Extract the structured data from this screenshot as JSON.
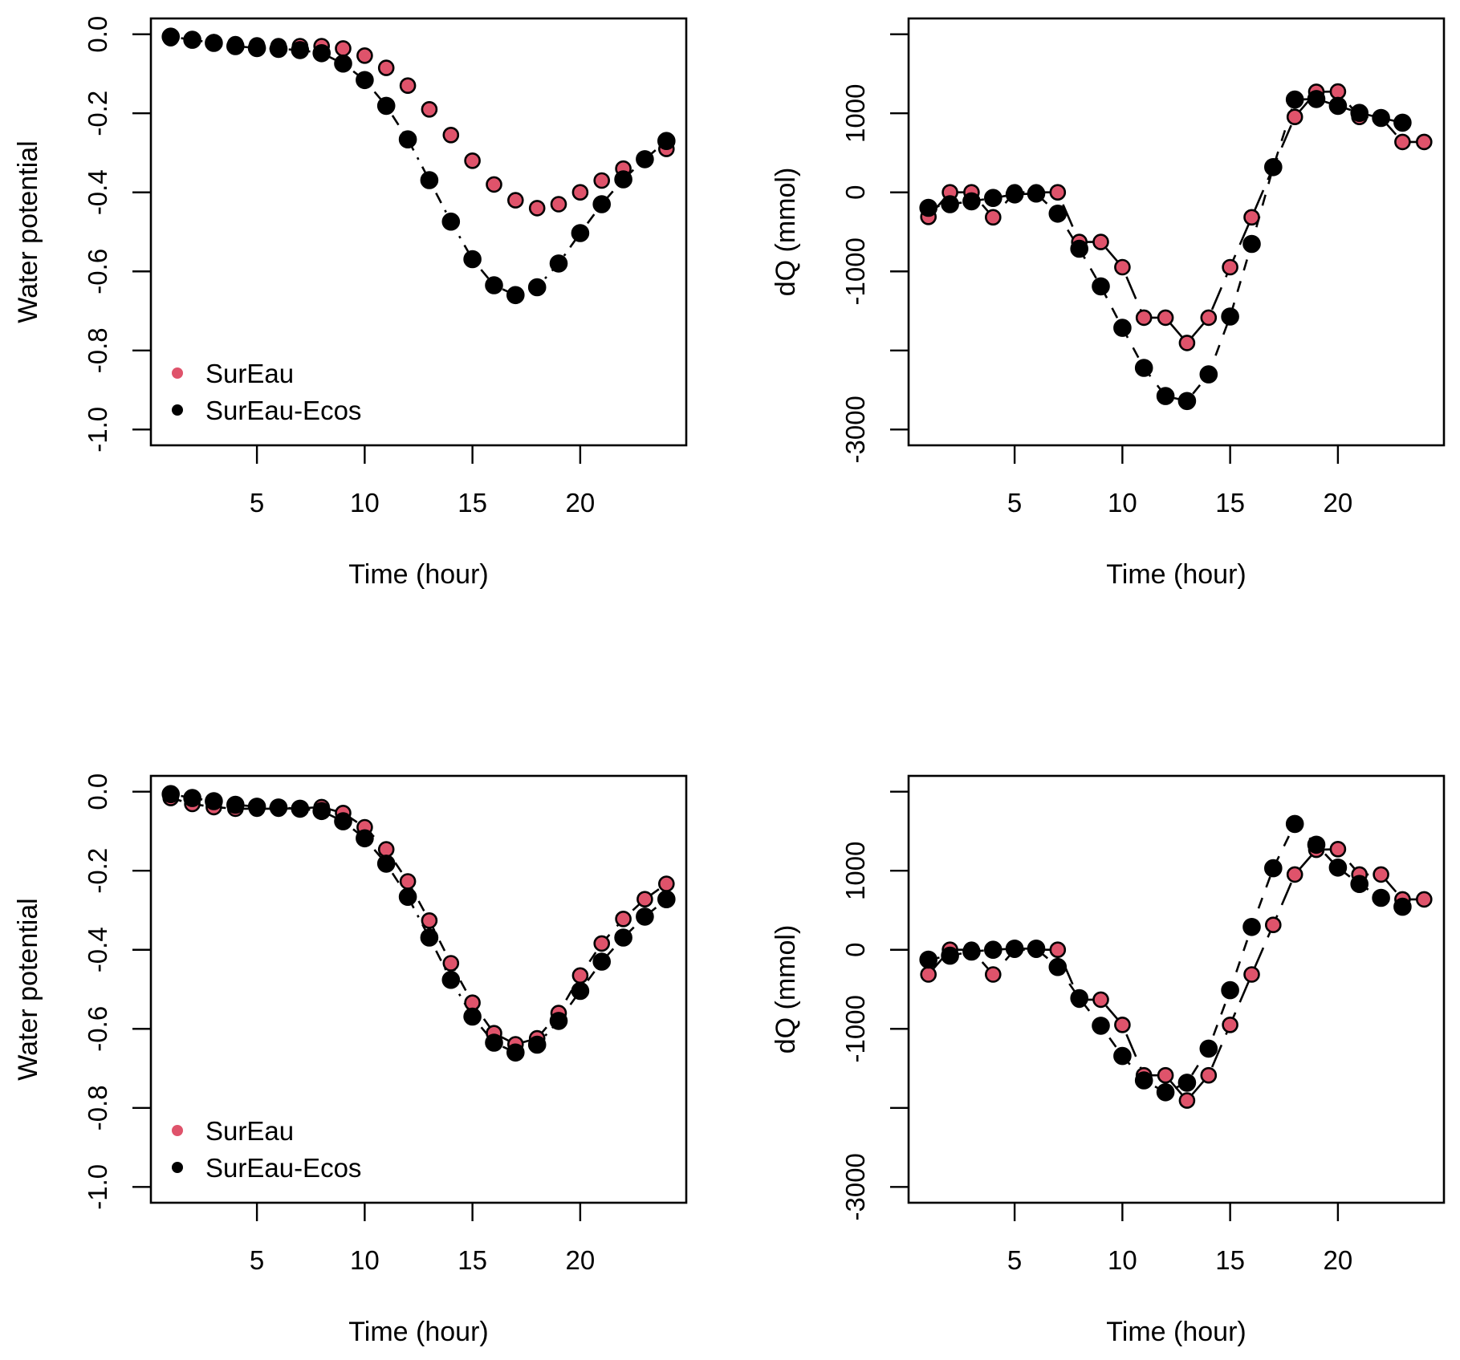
{
  "colors": {
    "sureau": "#DF536B",
    "sureau_ecos": "#000000"
  },
  "chart_data": [
    {
      "id": "top-left",
      "type": "scatter",
      "title": "",
      "xlabel": "Time (hour)",
      "ylabel": "Water potential",
      "xlim": [
        1,
        24
      ],
      "ylim": [
        -1.0,
        0.0
      ],
      "xticks": [
        5,
        10,
        15,
        20
      ],
      "xtick_labels": [
        "5",
        "10",
        "15",
        "20"
      ],
      "yticks": [
        0.0,
        -0.2,
        -0.4,
        -0.6,
        -0.8,
        -1.0
      ],
      "ytick_labels": [
        "0.0",
        "-0.2",
        "-0.4",
        "-0.6",
        "-0.8",
        "-1.0"
      ],
      "legend": {
        "placement": "bottom-left",
        "entries": [
          "SurEau",
          "SurEau-Ecos"
        ]
      },
      "grid": false,
      "series": [
        {
          "name": "SurEau",
          "color": "#DF536B",
          "line": "none",
          "x": [
            1,
            2,
            3,
            4,
            5,
            6,
            7,
            8,
            9,
            10,
            11,
            12,
            13,
            14,
            15,
            16,
            17,
            18,
            19,
            20,
            21,
            22,
            23,
            24
          ],
          "values": [
            -0.01,
            -0.015,
            -0.02,
            -0.025,
            -0.028,
            -0.03,
            -0.03,
            -0.03,
            -0.036,
            -0.054,
            -0.085,
            -0.13,
            -0.19,
            -0.255,
            -0.32,
            -0.38,
            -0.42,
            -0.44,
            -0.43,
            -0.4,
            -0.37,
            -0.34,
            -0.315,
            -0.29
          ]
        },
        {
          "name": "SurEau-Ecos",
          "color": "#000000",
          "line": "dotdash",
          "x": [
            1,
            2,
            3,
            4,
            5,
            6,
            7,
            8,
            9,
            10,
            11,
            12,
            13,
            14,
            15,
            16,
            17,
            18,
            19,
            20,
            21,
            22,
            23,
            24
          ],
          "values": [
            -0.006,
            -0.014,
            -0.022,
            -0.03,
            -0.035,
            -0.037,
            -0.04,
            -0.048,
            -0.074,
            -0.116,
            -0.181,
            -0.266,
            -0.369,
            -0.474,
            -0.569,
            -0.635,
            -0.66,
            -0.64,
            -0.58,
            -0.503,
            -0.43,
            -0.367,
            -0.316,
            -0.27
          ]
        }
      ]
    },
    {
      "id": "top-right",
      "type": "scatter",
      "title": "",
      "xlabel": "Time (hour)",
      "ylabel": "dQ (mmol)",
      "xlim": [
        1,
        24
      ],
      "ylim": [
        -3000,
        2000
      ],
      "xticks": [
        5,
        10,
        15,
        20
      ],
      "xtick_labels": [
        "5",
        "10",
        "15",
        "20"
      ],
      "yticks": [
        2000,
        1000,
        0,
        -1000,
        -2000,
        -3000
      ],
      "ytick_labels": [
        "",
        "1000",
        "0",
        "-1000",
        "",
        "-3000"
      ],
      "grid": false,
      "series": [
        {
          "name": "SurEau",
          "color": "#DF536B",
          "line": "longdash",
          "x": [
            1,
            2,
            3,
            4,
            5,
            6,
            7,
            8,
            9,
            10,
            11,
            12,
            13,
            14,
            15,
            16,
            17,
            18,
            19,
            20,
            21,
            22,
            23,
            24
          ],
          "values": [
            -310,
            0,
            0,
            -315,
            0,
            0,
            0,
            -628,
            -628,
            -947,
            -1585,
            -1585,
            -1905,
            -1585,
            -947,
            -315,
            319,
            955,
            1272,
            1275,
            955,
            945,
            638,
            638
          ]
        },
        {
          "name": "SurEau-Ecos",
          "color": "#000000",
          "line": "dashed",
          "x": [
            1,
            2,
            3,
            4,
            5,
            6,
            7,
            8,
            9,
            10,
            11,
            12,
            13,
            14,
            15,
            16,
            17,
            18,
            19,
            20,
            21,
            22,
            23
          ],
          "values": [
            -195,
            -150,
            -113,
            -71,
            -26,
            -15,
            -270,
            -713,
            -1189,
            -1714,
            -2220,
            -2577,
            -2640,
            -2303,
            -1571,
            -652,
            319,
            1174,
            1181,
            1095,
            1005,
            941,
            881
          ]
        }
      ]
    },
    {
      "id": "bottom-left",
      "type": "scatter",
      "title": "",
      "xlabel": "Time (hour)",
      "ylabel": "Water potential",
      "xlim": [
        1,
        24
      ],
      "ylim": [
        -1.0,
        0.0
      ],
      "xticks": [
        5,
        10,
        15,
        20
      ],
      "xtick_labels": [
        "5",
        "10",
        "15",
        "20"
      ],
      "yticks": [
        0.0,
        -0.2,
        -0.4,
        -0.6,
        -0.8,
        -1.0
      ],
      "ytick_labels": [
        "0.0",
        "-0.2",
        "-0.4",
        "-0.6",
        "-0.8",
        "-1.0"
      ],
      "legend": {
        "placement": "bottom-left",
        "entries": [
          "SurEau",
          "SurEau-Ecos"
        ]
      },
      "grid": false,
      "series": [
        {
          "name": "SurEau",
          "color": "#DF536B",
          "line": "dashed",
          "x": [
            1,
            2,
            3,
            4,
            5,
            6,
            7,
            8,
            9,
            10,
            11,
            12,
            13,
            14,
            15,
            16,
            17,
            18,
            19,
            20,
            21,
            22,
            23,
            24
          ],
          "values": [
            -0.016,
            -0.031,
            -0.039,
            -0.043,
            -0.043,
            -0.043,
            -0.042,
            -0.039,
            -0.054,
            -0.09,
            -0.146,
            -0.227,
            -0.326,
            -0.434,
            -0.534,
            -0.611,
            -0.639,
            -0.624,
            -0.56,
            -0.465,
            -0.384,
            -0.322,
            -0.272,
            -0.233
          ]
        },
        {
          "name": "SurEau-Ecos",
          "color": "#000000",
          "line": "dotdash",
          "x": [
            1,
            2,
            3,
            4,
            5,
            6,
            7,
            8,
            9,
            10,
            11,
            12,
            13,
            14,
            15,
            16,
            17,
            18,
            19,
            20,
            21,
            22,
            23,
            24
          ],
          "values": [
            -0.006,
            -0.016,
            -0.024,
            -0.033,
            -0.038,
            -0.04,
            -0.043,
            -0.049,
            -0.075,
            -0.118,
            -0.182,
            -0.266,
            -0.369,
            -0.476,
            -0.569,
            -0.635,
            -0.66,
            -0.64,
            -0.58,
            -0.504,
            -0.43,
            -0.369,
            -0.316,
            -0.272
          ]
        }
      ]
    },
    {
      "id": "bottom-right",
      "type": "scatter",
      "title": "",
      "xlabel": "Time (hour)",
      "ylabel": "dQ (mmol)",
      "xlim": [
        1,
        24
      ],
      "ylim": [
        -3000,
        2000
      ],
      "xticks": [
        5,
        10,
        15,
        20
      ],
      "xtick_labels": [
        "5",
        "10",
        "15",
        "20"
      ],
      "yticks": [
        2000,
        1000,
        0,
        -1000,
        -2000,
        -3000
      ],
      "ytick_labels": [
        "",
        "1000",
        "0",
        "-1000",
        "",
        "-3000"
      ],
      "grid": false,
      "series": [
        {
          "name": "SurEau",
          "color": "#DF536B",
          "line": "longdash",
          "x": [
            1,
            2,
            3,
            4,
            5,
            6,
            7,
            8,
            9,
            10,
            11,
            12,
            13,
            14,
            15,
            16,
            17,
            18,
            19,
            20,
            21,
            22,
            23,
            24
          ],
          "values": [
            -312,
            0,
            0,
            -312,
            0,
            0,
            0,
            -631,
            -631,
            -950,
            -1588,
            -1588,
            -1907,
            -1588,
            -950,
            -312,
            315,
            953,
            1265,
            1273,
            953,
            953,
            638,
            638
          ]
        },
        {
          "name": "SurEau-Ecos",
          "color": "#000000",
          "line": "dashed",
          "x": [
            1,
            2,
            3,
            4,
            5,
            6,
            7,
            8,
            9,
            10,
            11,
            12,
            13,
            14,
            15,
            16,
            17,
            18,
            19,
            20,
            21,
            22,
            23
          ],
          "values": [
            -124,
            -75,
            -23,
            0,
            15,
            15,
            -218,
            -612,
            -961,
            -1344,
            -1652,
            -1802,
            -1682,
            -1250,
            -511,
            289,
            1032,
            1592,
            1329,
            1040,
            833,
            657,
            544
          ]
        }
      ]
    }
  ]
}
